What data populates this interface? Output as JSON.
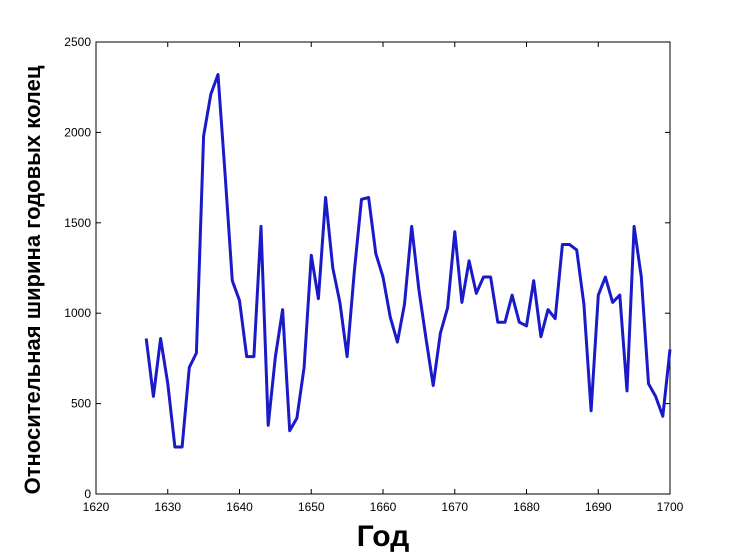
{
  "chart_data": {
    "type": "line",
    "title": "",
    "xlabel": "Год",
    "ylabel": "Относительная ширина годовых колец",
    "xlim": [
      1620,
      1700
    ],
    "ylim": [
      0,
      2500
    ],
    "xticks": [
      1620,
      1630,
      1640,
      1650,
      1660,
      1670,
      1680,
      1690,
      1700
    ],
    "yticks": [
      0,
      500,
      1000,
      1500,
      2000,
      2500
    ],
    "grid": false,
    "line_color": "#1a1ac8",
    "series": [
      {
        "x": [
          1627,
          1628,
          1629,
          1630,
          1631,
          1632,
          1633,
          1634,
          1635,
          1636,
          1637,
          1638,
          1639,
          1640,
          1641,
          1642,
          1643,
          1644,
          1645,
          1646,
          1647,
          1648,
          1649,
          1650,
          1651,
          1652,
          1653,
          1654,
          1655,
          1656,
          1657,
          1658,
          1659,
          1660,
          1661,
          1662,
          1663,
          1664,
          1665,
          1666,
          1667,
          1668,
          1669,
          1670,
          1671,
          1672,
          1673,
          1674,
          1675,
          1676,
          1677,
          1678,
          1679,
          1680,
          1681,
          1682,
          1683,
          1684,
          1685,
          1686,
          1687,
          1688,
          1689,
          1690,
          1691,
          1692,
          1693,
          1694,
          1695,
          1696,
          1697,
          1698,
          1699,
          1700
        ],
        "values": [
          860,
          540,
          860,
          610,
          260,
          260,
          700,
          780,
          1980,
          2210,
          2320,
          1760,
          1180,
          1070,
          760,
          760,
          1480,
          380,
          760,
          1020,
          350,
          420,
          700,
          1320,
          1080,
          1640,
          1250,
          1060,
          760,
          1230,
          1630,
          1640,
          1330,
          1200,
          980,
          840,
          1050,
          1480,
          1130,
          860,
          600,
          890,
          1030,
          1450,
          1060,
          1290,
          1110,
          1200,
          1200,
          950,
          950,
          1100,
          950,
          930,
          1180,
          870,
          1020,
          970,
          1380,
          1380,
          1350,
          1050,
          460,
          1100,
          1200,
          1060,
          1100,
          570,
          1480,
          1200,
          610,
          540,
          430,
          800
        ]
      }
    ]
  }
}
